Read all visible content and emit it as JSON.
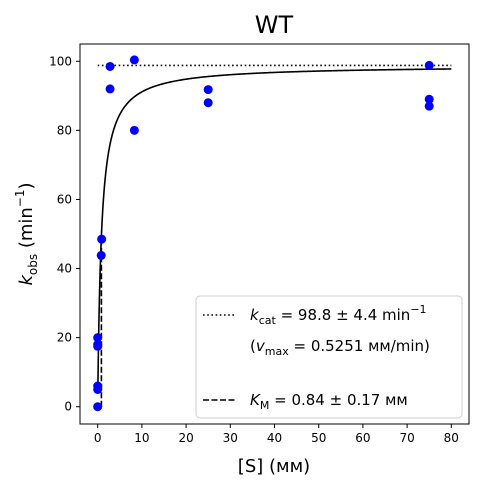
{
  "chart_data": {
    "type": "scatter",
    "title": "WT",
    "xlabel": "[S] (мм)",
    "ylabel": {
      "base": "k",
      "sub": "obs",
      "unit_pre": " (min",
      "sup": "−1",
      "unit_post": ")"
    },
    "xlim": [
      -4,
      84
    ],
    "ylim": [
      -5,
      105
    ],
    "xticks": [
      0,
      10,
      20,
      30,
      40,
      50,
      60,
      70,
      80
    ],
    "yticks": [
      0,
      20,
      40,
      60,
      80,
      100
    ],
    "grid": false,
    "legend_position": "lower-right",
    "points": [
      [
        0,
        0
      ],
      [
        0,
        5
      ],
      [
        0,
        6
      ],
      [
        0,
        17.5
      ],
      [
        0,
        18
      ],
      [
        0,
        20
      ],
      [
        0.8,
        43.8
      ],
      [
        0.9,
        48.5
      ],
      [
        2.8,
        92
      ],
      [
        2.8,
        98.5
      ],
      [
        8.3,
        80
      ],
      [
        8.3,
        100.4
      ],
      [
        25,
        88
      ],
      [
        25,
        91.8
      ],
      [
        75,
        87
      ],
      [
        75,
        89
      ],
      [
        75,
        98.8
      ]
    ],
    "point_color": "#0000ff",
    "fit_curve": {
      "kcat": 98.8,
      "KM": 0.84,
      "x_range": [
        0.05,
        80
      ],
      "style": "solid"
    },
    "kcat_line": {
      "y": 98.8,
      "x_range": [
        0,
        80
      ],
      "style": "dotted"
    },
    "km_line": {
      "x": 0.84,
      "y_range": [
        0,
        49.4
      ],
      "style": "dashed"
    },
    "legend": {
      "kcat": {
        "sym": "k",
        "sub": "cat",
        "value": " = 98.8 ± 4.4 min",
        "sup": "−1"
      },
      "vmax": {
        "open": "(",
        "sym": "v",
        "sub": "max",
        "value": " = 0.5251 мм/min)"
      },
      "km": {
        "sym": "K",
        "sub": "M",
        "value": " = 0.84 ± 0.17 мм"
      }
    }
  }
}
